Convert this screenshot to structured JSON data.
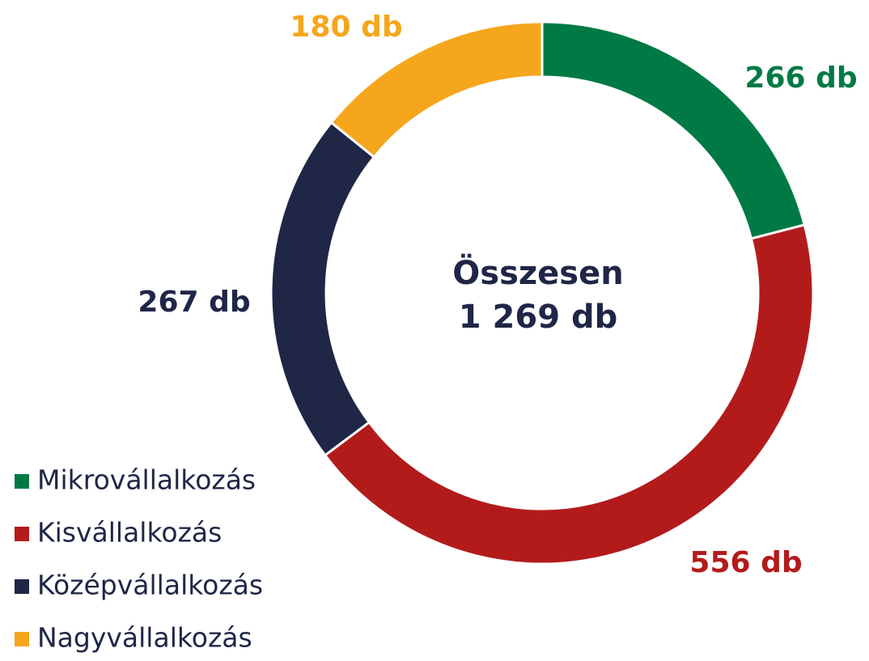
{
  "chart_data": {
    "type": "pie",
    "donut": true,
    "categories": [
      "Mikrovállalkozás",
      "Kisvállalkozás",
      "Középvállalkozás",
      "Nagyvállalkozás"
    ],
    "values": [
      266,
      556,
      267,
      180
    ],
    "value_labels": [
      "266 db",
      "556 db",
      "267 db",
      "180 db"
    ],
    "colors": [
      "#007a45",
      "#b31b1b",
      "#1f2646",
      "#f5a61c"
    ],
    "annotations": [
      "Összesen",
      "1 269 db"
    ],
    "legend": "bottom-left"
  }
}
